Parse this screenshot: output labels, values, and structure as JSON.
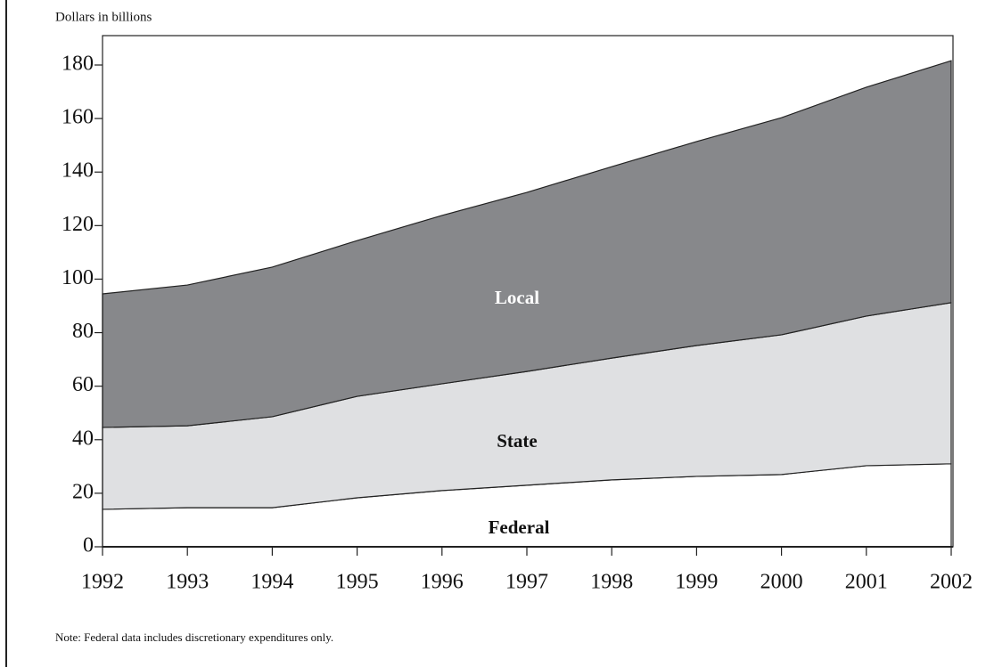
{
  "chart_data": {
    "type": "stacked_area",
    "y_axis_label": "Dollars in billions",
    "note": "Note:  Federal  data includes discretionary expenditures only.",
    "x": [
      1992,
      1993,
      1994,
      1995,
      1996,
      1997,
      1998,
      1999,
      2000,
      2001,
      2002
    ],
    "xlim": [
      1992,
      2002
    ],
    "xticks": [
      1992,
      1993,
      1994,
      1995,
      1996,
      1997,
      1998,
      1999,
      2000,
      2001,
      2002
    ],
    "ylim": [
      0,
      180
    ],
    "yticks": [
      0,
      20,
      40,
      60,
      80,
      100,
      120,
      140,
      160,
      180
    ],
    "series": [
      {
        "name": "Federal",
        "color": "#ffffff",
        "values": [
          14,
          14.6,
          14.6,
          18.3,
          21,
          23,
          25,
          26.3,
          27,
          30.3,
          31
        ]
      },
      {
        "name": "State",
        "color": "#dfe0e2",
        "values": [
          30.6,
          30.6,
          34,
          37.9,
          39.9,
          42.5,
          45.5,
          48.9,
          52.2,
          55.9,
          60.2
        ]
      },
      {
        "name": "Local",
        "color": "#87888b",
        "values": [
          49.9,
          52.6,
          55.9,
          58.2,
          62.9,
          66.9,
          71.5,
          76.2,
          81.1,
          85.5,
          90.4
        ]
      }
    ]
  }
}
